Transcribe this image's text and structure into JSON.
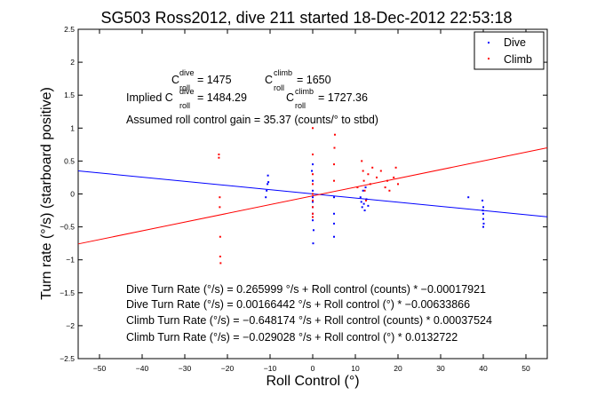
{
  "chart_data": {
    "type": "scatter",
    "title": "SG503 Ross2012, dive 211 started 18-Dec-2012 22:53:18",
    "xlabel": "Roll Control (°)",
    "ylabel": "Turn rate (°/s) (starboard positive)",
    "xlim": [
      -55,
      55
    ],
    "ylim": [
      -2.5,
      2.5
    ],
    "xticks": [
      "−50",
      "−40",
      "−30",
      "−20",
      "−10",
      "0",
      "10",
      "20",
      "30",
      "40",
      "50"
    ],
    "yticks": [
      "2.5",
      "2",
      "1.5",
      "1",
      "0.5",
      "0",
      "−0.5",
      "−1",
      "−1.5",
      "−2",
      "−2.5"
    ],
    "grid": false,
    "legend_position": "top-right",
    "colors": {
      "dive": "#0000ff",
      "climb": "#ff0000"
    },
    "series": [
      {
        "name": "Dive",
        "points": [
          [
            -11,
            -0.05
          ],
          [
            -10.8,
            0.05
          ],
          [
            -10.6,
            0.15
          ],
          [
            -10.5,
            0.28
          ],
          [
            -10.4,
            0.18
          ],
          [
            -0.2,
            0.35
          ],
          [
            0,
            0.2
          ],
          [
            0,
            0.05
          ],
          [
            0,
            -0.05
          ],
          [
            0,
            -0.12
          ],
          [
            0,
            -0.2
          ],
          [
            0,
            -0.3
          ],
          [
            0,
            -0.4
          ],
          [
            0.2,
            -0.55
          ],
          [
            0.1,
            -0.75
          ],
          [
            0,
            0.45
          ],
          [
            5,
            -0.3
          ],
          [
            5,
            -0.45
          ],
          [
            5,
            -0.65
          ],
          [
            11.2,
            -0.05
          ],
          [
            11.4,
            -0.12
          ],
          [
            11.6,
            -0.2
          ],
          [
            11.8,
            0.05
          ],
          [
            12,
            -0.15
          ],
          [
            12.2,
            -0.25
          ],
          [
            12.4,
            0.1
          ],
          [
            12.6,
            -0.08
          ],
          [
            13,
            -0.18
          ],
          [
            5,
            -0.05
          ],
          [
            36.5,
            -0.05
          ],
          [
            39.8,
            -0.1
          ],
          [
            40,
            -0.2
          ],
          [
            40,
            -0.3
          ],
          [
            40,
            -0.38
          ],
          [
            40.1,
            -0.45
          ],
          [
            40,
            -0.5
          ],
          [
            39.9,
            -0.25
          ]
        ]
      },
      {
        "name": "Climb",
        "points": [
          [
            -22,
            0.6
          ],
          [
            -22,
            0.55
          ],
          [
            -21.8,
            -0.05
          ],
          [
            -21.8,
            -0.2
          ],
          [
            -21.7,
            -0.65
          ],
          [
            -21.7,
            -0.95
          ],
          [
            -21.6,
            -1.05
          ],
          [
            0,
            1.0
          ],
          [
            0,
            0.6
          ],
          [
            0,
            0.3
          ],
          [
            0,
            0.15
          ],
          [
            0,
            0.0
          ],
          [
            0,
            -0.1
          ],
          [
            0,
            -0.2
          ],
          [
            0,
            -0.3
          ],
          [
            0,
            -0.35
          ],
          [
            5.2,
            0.9
          ],
          [
            5.1,
            0.7
          ],
          [
            5,
            0.45
          ],
          [
            5,
            0.2
          ],
          [
            11.5,
            0.5
          ],
          [
            11.8,
            0.35
          ],
          [
            12,
            0.2
          ],
          [
            12.2,
            0.05
          ],
          [
            12.5,
            -0.1
          ],
          [
            13,
            0.3
          ],
          [
            13.5,
            0.15
          ],
          [
            14,
            0.4
          ],
          [
            15,
            0.25
          ],
          [
            16,
            0.35
          ],
          [
            17,
            0.1
          ],
          [
            17.5,
            0.2
          ],
          [
            18,
            0.05
          ],
          [
            19,
            0.25
          ],
          [
            20,
            0.15
          ],
          [
            19.5,
            0.4
          ],
          [
            10.5,
            0.1
          ]
        ]
      }
    ],
    "fit_lines": [
      {
        "series": "Dive",
        "intercept": 0.00166442,
        "slope": -0.00633866
      },
      {
        "series": "Climb",
        "intercept": -0.029028,
        "slope": 0.0132722
      }
    ]
  },
  "annotations": {
    "c_dive_main": "C",
    "c_dive_sup": "dive",
    "c_dive_sub": "roll",
    "c_dive_val": " = 1475",
    "c_climb_main": "C",
    "c_climb_sup": "climb",
    "c_climb_sub": "roll",
    "c_climb_val": " = 1650",
    "implied_prefix": "Implied C",
    "implied_dive_sup": "dive",
    "implied_dive_sub": "roll",
    "implied_dive_val": " = 1484.29",
    "implied_climb_main": "C",
    "implied_climb_sup": "climb",
    "implied_climb_sub": "roll",
    "implied_climb_val": " = 1727.36",
    "gain": "Assumed roll control gain = 35.37 (counts/° to stbd)"
  },
  "equations": [
    "Dive Turn Rate (°/s) = 0.265999 °/s + Roll control (counts) * −0.00017921",
    "Dive Turn Rate (°/s) = 0.00166442 °/s + Roll control (°) * −0.00633866",
    "Climb Turn Rate (°/s) = −0.648174 °/s + Roll control (counts) * 0.00037524",
    "Climb Turn Rate (°/s) = −0.029028 °/s + Roll control (°) * 0.0132722"
  ]
}
